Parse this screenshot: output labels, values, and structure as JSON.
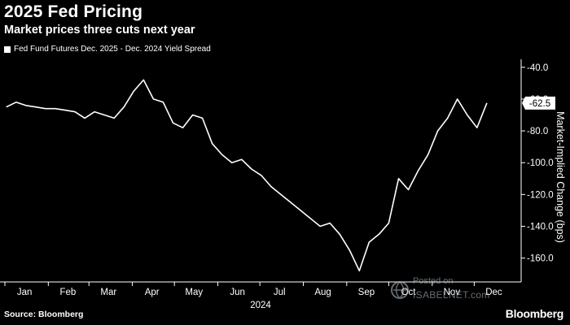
{
  "header": {
    "title": "2025 Fed Pricing",
    "subtitle": "Market prices three cuts next year"
  },
  "legend": {
    "label": "Fed Fund Futures Dec. 2025 - Dec. 2024 Yield Spread"
  },
  "footer": {
    "source": "Source: Bloomberg",
    "brand": "Bloomberg"
  },
  "watermark": {
    "posted": "Posted on",
    "site": "ISABELNET.com"
  },
  "colors": {
    "background": "#000000",
    "line": "#ffffff"
  },
  "chart_data": {
    "type": "line",
    "title": "2025 Fed Pricing",
    "subtitle": "Market prices three cuts next year",
    "xlabel": "2024",
    "ylabel": "Market-Implied Change (bps)",
    "x_ticks": [
      "Jan",
      "Feb",
      "Mar",
      "Apr",
      "May",
      "Jun",
      "Jul",
      "Aug",
      "Sep",
      "Oct",
      "Nov",
      "Dec"
    ],
    "y_ticks": [
      -40.0,
      -60.0,
      -80.0,
      -100.0,
      -120.0,
      -140.0,
      -160.0
    ],
    "y_tick_labels": [
      "-40.0",
      "-60.0",
      "-80.0",
      "-100.0",
      "-120.0",
      "-140.0",
      "-160.0"
    ],
    "ylim": [
      -175,
      -35
    ],
    "y_axis_side": "right",
    "grid": false,
    "legend_position": "top-left",
    "last_value_label": "-62.5",
    "series": [
      {
        "name": "Fed Fund Futures Dec. 2025 - Dec. 2024 Yield Spread",
        "x": [
          "2024-01-02",
          "2024-01-09",
          "2024-01-16",
          "2024-01-23",
          "2024-01-30",
          "2024-02-06",
          "2024-02-13",
          "2024-02-20",
          "2024-02-27",
          "2024-03-05",
          "2024-03-12",
          "2024-03-19",
          "2024-03-26",
          "2024-04-02",
          "2024-04-09",
          "2024-04-16",
          "2024-04-23",
          "2024-04-30",
          "2024-05-07",
          "2024-05-14",
          "2024-05-21",
          "2024-05-28",
          "2024-06-04",
          "2024-06-11",
          "2024-06-18",
          "2024-06-25",
          "2024-07-02",
          "2024-07-09",
          "2024-07-16",
          "2024-07-23",
          "2024-07-30",
          "2024-08-06",
          "2024-08-13",
          "2024-08-20",
          "2024-08-27",
          "2024-09-03",
          "2024-09-10",
          "2024-09-17",
          "2024-09-24",
          "2024-10-01",
          "2024-10-08",
          "2024-10-15",
          "2024-10-22",
          "2024-10-29",
          "2024-11-05",
          "2024-11-12",
          "2024-11-19",
          "2024-11-26",
          "2024-12-03",
          "2024-12-10"
        ],
        "values": [
          -65,
          -62,
          -64,
          -65,
          -66,
          -66,
          -67,
          -68,
          -72,
          -68,
          -70,
          -72,
          -65,
          -55,
          -48,
          -60,
          -62,
          -75,
          -78,
          -70,
          -72,
          -88,
          -95,
          -100,
          -98,
          -104,
          -108,
          -115,
          -120,
          -125,
          -130,
          -135,
          -140,
          -138,
          -145,
          -155,
          -168,
          -150,
          -145,
          -138,
          -110,
          -117,
          -105,
          -95,
          -80,
          -72,
          -60,
          -70,
          -78,
          -62.5
        ]
      }
    ]
  }
}
